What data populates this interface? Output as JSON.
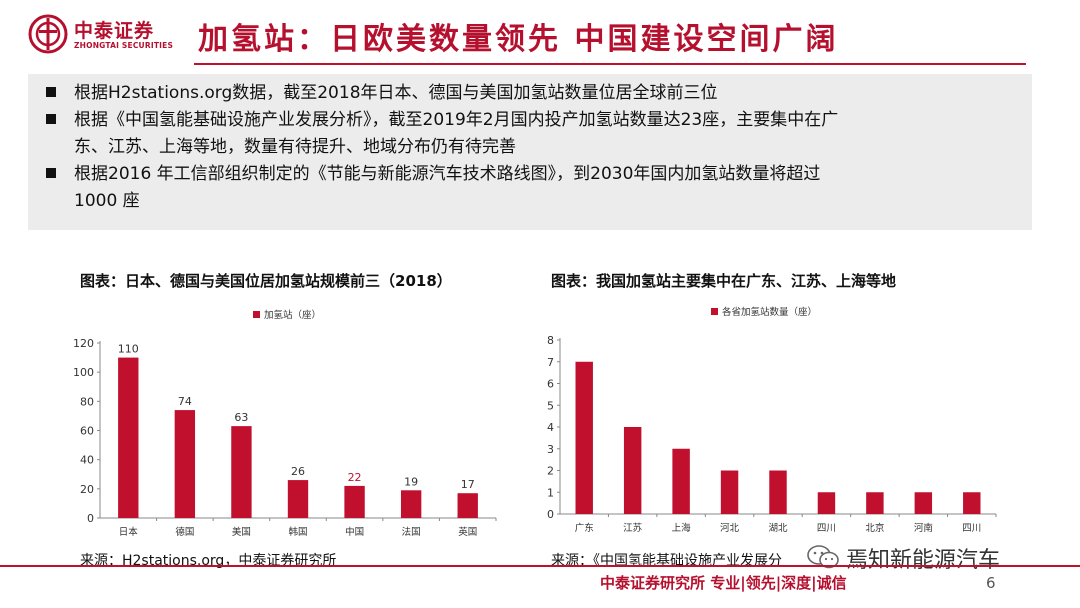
{
  "header": {
    "logo_cn": "中泰证券",
    "logo_en": "ZHONGTAI SECURITIES",
    "title": "加氢站：日欧美数量领先 中国建设空间广阔"
  },
  "bullets": [
    {
      "line1": "根据H2stations.org数据，截至2018年日本、德国与美国加氢站数量位居全球前三位",
      "line2": ""
    },
    {
      "line1": "根据《中国氢能基础设施产业发展分析》，截至2019年2月国内投产加氢站数量达23座，主要集中在广",
      "line2": "东、江苏、上海等地，数量有待提升、地域分布仍有待完善"
    },
    {
      "line1": "根据2016 年工信部组织制定的《节能与新能源汽车技术路线图》，到2030年国内加氢站数量将超过",
      "line2": "1000 座"
    }
  ],
  "chart_data": [
    {
      "type": "bar",
      "title": "图表：日本、德国与美国位居加氢站规模前三（2018）",
      "categories": [
        "日本",
        "德国",
        "美国",
        "韩国",
        "中国",
        "法国",
        "英国"
      ],
      "series": [
        {
          "name": "加氢站（座）",
          "values": [
            110,
            74,
            63,
            26,
            22,
            19,
            17
          ]
        }
      ],
      "ylim": [
        0,
        120
      ],
      "yticks": [
        0,
        20,
        40,
        60,
        80,
        100,
        120
      ],
      "color": "#c0102e",
      "label_highlight_index": 4,
      "label_highlight_color": "#c0102e",
      "grid": false,
      "legend": "top",
      "source": "来源：H2stations.org，中泰证券研究所"
    },
    {
      "type": "bar",
      "title": "图表：我国加氢站主要集中在广东、江苏、上海等地",
      "categories": [
        "广东",
        "江苏",
        "上海",
        "河北",
        "湖北",
        "四川",
        "北京",
        "河南",
        "四川"
      ],
      "series": [
        {
          "name": "各省加氢站数量（座）",
          "values": [
            7,
            4,
            3,
            2,
            2,
            1,
            1,
            1,
            1
          ]
        }
      ],
      "ylim": [
        0,
        8
      ],
      "yticks": [
        0,
        1,
        2,
        3,
        4,
        5,
        6,
        7,
        8
      ],
      "color": "#c0102e",
      "grid": false,
      "legend": "top",
      "source": "来源：《中国氢能基础设施产业发展分"
    }
  ],
  "footer": {
    "text": "中泰证券研究所 专业|领先|深度|诚信",
    "page": "6"
  },
  "watermark": {
    "text": "焉知新能源汽车"
  }
}
